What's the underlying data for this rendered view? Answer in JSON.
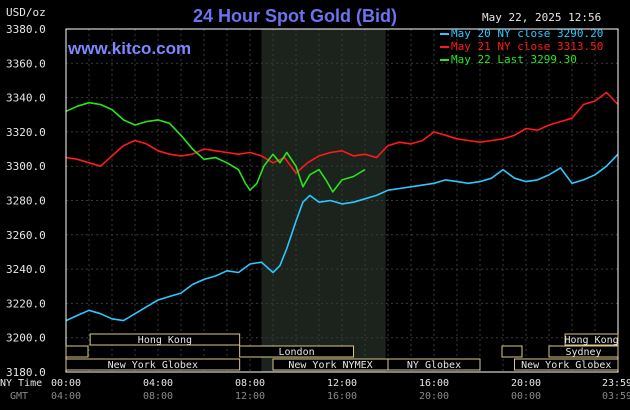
{
  "header": {
    "unit": "USD/oz",
    "title": "24 Hour Spot Gold (Bid)",
    "timestamp": "May 22, 2025 12:56",
    "watermark": "www.kitco.com"
  },
  "legend": [
    {
      "label": "May 20 NY close 3290.20",
      "color": "#2ec7ff"
    },
    {
      "label": "May 21 NY close 3313.50",
      "color": "#ff1a1a"
    },
    {
      "label": "May 22 Last 3299.30",
      "color": "#27e619"
    }
  ],
  "sessions": [
    {
      "label": "Hong Kong",
      "row": 0,
      "start": 1.05,
      "end": 7.55
    },
    {
      "label": "Hong Kong",
      "row": 0,
      "start": 21.7,
      "end": 24.0
    },
    {
      "label": "London",
      "row": 1,
      "start": 0.0,
      "end": 0.0
    },
    {
      "label": "London",
      "row": 1,
      "start": 7.55,
      "end": 12.5
    },
    {
      "label": "Sydney",
      "row": 1,
      "start": 21.0,
      "end": 24.0
    },
    {
      "label": "New York Globex",
      "row": 2,
      "start": 0.0,
      "end": 7.55
    },
    {
      "label": "New York NYMEX",
      "row": 2,
      "start": 9.0,
      "end": 14.0
    },
    {
      "label": "NY Globex",
      "row": 2,
      "start": 14.0,
      "end": 18.0
    },
    {
      "label": "New York Globex",
      "row": 2,
      "start": 19.5,
      "end": 24.0
    }
  ],
  "time_rows": {
    "ny_label": "NY Time",
    "gmt_label": "GMT",
    "ny_ticks": [
      "00:00",
      "04:00",
      "08:00",
      "12:00",
      "16:00",
      "20:00",
      "23:59"
    ],
    "gmt_ticks": [
      "04:00",
      "08:00",
      "12:00",
      "16:00",
      "20:00",
      "00:00",
      "03:59"
    ]
  },
  "chart_data": {
    "type": "line",
    "title": "24 Hour Spot Gold (Bid)",
    "ylabel": "USD/oz",
    "xlabel": "NY Time",
    "ylim": [
      3180,
      3380
    ],
    "xlim": [
      0,
      24
    ],
    "yticks": [
      "3380.0",
      "3360.0",
      "3340.0",
      "3320.0",
      "3300.0",
      "3280.0",
      "3260.0",
      "3240.0",
      "3220.0",
      "3200.0",
      "3180.0"
    ],
    "ytick_values": [
      3380,
      3360,
      3340,
      3320,
      3300,
      3280,
      3260,
      3240,
      3220,
      3200,
      3180
    ],
    "highlight_band": [
      8.5,
      13.9
    ],
    "grid": true,
    "series": [
      {
        "name": "May 20 NY close 3290.20",
        "color": "#2ec7ff",
        "x": [
          0,
          0.5,
          1,
          1.5,
          2,
          2.5,
          3,
          3.5,
          4,
          4.5,
          5,
          5.5,
          6,
          6.5,
          7,
          7.5,
          8,
          8.5,
          9,
          9.3,
          9.6,
          10,
          10.3,
          10.6,
          11,
          11.5,
          12,
          12.5,
          13,
          13.5,
          14,
          14.5,
          15,
          15.5,
          16,
          16.5,
          17,
          17.5,
          18,
          18.5,
          19,
          19.5,
          20,
          20.5,
          21,
          21.5,
          22,
          22.5,
          23,
          23.5,
          24
        ],
        "y": [
          3210,
          3213,
          3216,
          3214,
          3211,
          3210,
          3214,
          3218,
          3222,
          3224,
          3226,
          3231,
          3234,
          3236,
          3239,
          3238,
          3243,
          3244,
          3238,
          3242,
          3252,
          3268,
          3279,
          3283,
          3279,
          3280,
          3278,
          3279,
          3281,
          3283,
          3286,
          3287,
          3288,
          3289,
          3290,
          3292,
          3291,
          3290,
          3291,
          3293,
          3298,
          3293,
          3291,
          3292,
          3295,
          3299,
          3290,
          3292,
          3295,
          3300,
          3307
        ]
      },
      {
        "name": "May 21 NY close 3313.50",
        "color": "#ff1a1a",
        "x": [
          0,
          0.5,
          1,
          1.5,
          2,
          2.5,
          3,
          3.5,
          4,
          4.5,
          5,
          5.5,
          6,
          6.5,
          7,
          7.5,
          8,
          8.5,
          9,
          9.5,
          10,
          10.5,
          11,
          11.5,
          12,
          12.5,
          13,
          13.5,
          14,
          14.5,
          15,
          15.5,
          16,
          16.5,
          17,
          17.5,
          18,
          18.5,
          19,
          19.5,
          20,
          20.5,
          21,
          21.5,
          22,
          22.5,
          23,
          23.5,
          24
        ],
        "y": [
          3305,
          3304,
          3302,
          3300,
          3306,
          3312,
          3315,
          3313,
          3309,
          3307,
          3306,
          3307,
          3310,
          3309,
          3308,
          3307,
          3308,
          3306,
          3302,
          3305,
          3296,
          3302,
          3306,
          3308,
          3309,
          3306,
          3307,
          3305,
          3312,
          3314,
          3313,
          3315,
          3320,
          3318,
          3316,
          3315,
          3314,
          3315,
          3316,
          3318,
          3322,
          3321,
          3324,
          3326,
          3328,
          3336,
          3338,
          3343,
          3336
        ]
      },
      {
        "name": "May 22 Last 3299.30",
        "color": "#27e619",
        "x": [
          0,
          0.5,
          1,
          1.5,
          2,
          2.5,
          3,
          3.5,
          4,
          4.5,
          5,
          5.5,
          6,
          6.5,
          7,
          7.5,
          7.8,
          8,
          8.3,
          8.6,
          9,
          9.3,
          9.6,
          10,
          10.3,
          10.6,
          11,
          11.3,
          11.6,
          12,
          12.5,
          13
        ],
        "y": [
          3332,
          3335,
          3337,
          3336,
          3333,
          3327,
          3324,
          3326,
          3327,
          3325,
          3318,
          3310,
          3304,
          3305,
          3302,
          3298,
          3290,
          3286,
          3290,
          3300,
          3307,
          3302,
          3308,
          3300,
          3288,
          3295,
          3298,
          3292,
          3285,
          3292,
          3294,
          3298
        ]
      }
    ]
  }
}
